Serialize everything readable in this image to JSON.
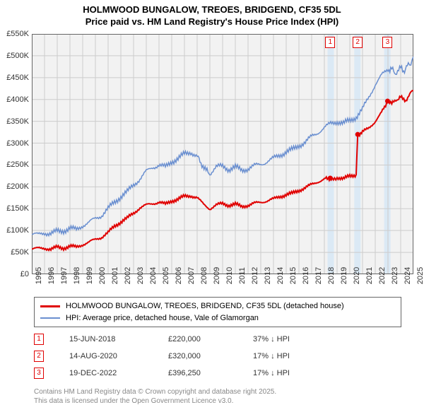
{
  "title_line1": "HOLMWOOD BUNGALOW, TREOES, BRIDGEND, CF35 5DL",
  "title_line2": "Price paid vs. HM Land Registry's House Price Index (HPI)",
  "chart": {
    "plot_background": "#f2f2f2",
    "band_color": "#dbe9f5",
    "grid_color": "#cccccc",
    "x_years": [
      1995,
      1996,
      1997,
      1998,
      1999,
      2000,
      2001,
      2002,
      2003,
      2004,
      2005,
      2006,
      2007,
      2008,
      2009,
      2010,
      2011,
      2012,
      2013,
      2014,
      2015,
      2016,
      2017,
      2018,
      2019,
      2020,
      2021,
      2022,
      2023,
      2024,
      2025
    ],
    "ylim": [
      0,
      550
    ],
    "ytick_step": 50,
    "ytick_labels": [
      "£0",
      "£50K",
      "£100K",
      "£150K",
      "£200K",
      "£250K",
      "£300K",
      "£350K",
      "£400K",
      "£450K",
      "£500K",
      "£550K"
    ],
    "bands": [
      {
        "from": 2018.25,
        "to": 2018.75
      },
      {
        "from": 2020.35,
        "to": 2020.85
      },
      {
        "from": 2022.7,
        "to": 2023.2
      }
    ],
    "series_red": {
      "color": "#e00000",
      "width": 2,
      "points": [
        [
          1995,
          58
        ],
        [
          1996,
          60
        ],
        [
          1996.5,
          57
        ],
        [
          1997,
          62
        ],
        [
          1997.5,
          60
        ],
        [
          1998,
          64
        ],
        [
          1998.5,
          62
        ],
        [
          1999,
          68
        ],
        [
          1999.5,
          73
        ],
        [
          2000,
          80
        ],
        [
          2000.5,
          85
        ],
        [
          2001,
          95
        ],
        [
          2001.5,
          110
        ],
        [
          2002,
          120
        ],
        [
          2002.5,
          128
        ],
        [
          2003,
          140
        ],
        [
          2003.5,
          152
        ],
        [
          2004,
          158
        ],
        [
          2004.5,
          162
        ],
        [
          2005,
          165
        ],
        [
          2005.5,
          160
        ],
        [
          2006,
          168
        ],
        [
          2006.5,
          172
        ],
        [
          2007,
          178
        ],
        [
          2007.5,
          180
        ],
        [
          2008,
          175
        ],
        [
          2008.5,
          160
        ],
        [
          2009,
          150
        ],
        [
          2009.5,
          158
        ],
        [
          2010,
          162
        ],
        [
          2010.5,
          158
        ],
        [
          2011,
          160
        ],
        [
          2011.5,
          155
        ],
        [
          2012,
          158
        ],
        [
          2012.5,
          162
        ],
        [
          2013,
          165
        ],
        [
          2013.5,
          168
        ],
        [
          2014,
          172
        ],
        [
          2014.5,
          178
        ],
        [
          2015,
          182
        ],
        [
          2015.5,
          185
        ],
        [
          2016,
          192
        ],
        [
          2016.5,
          198
        ],
        [
          2017,
          205
        ],
        [
          2017.5,
          212
        ],
        [
          2018,
          218
        ],
        [
          2018.46,
          220
        ],
        [
          2018.46,
          220
        ],
        [
          2018.8,
          218
        ],
        [
          2019,
          222
        ],
        [
          2019.5,
          218
        ],
        [
          2020,
          225
        ],
        [
          2020.5,
          228
        ],
        [
          2020.62,
          320
        ],
        [
          2020.62,
          320
        ],
        [
          2021,
          325
        ],
        [
          2021.5,
          335
        ],
        [
          2022,
          350
        ],
        [
          2022.5,
          370
        ],
        [
          2022.97,
          396.25
        ],
        [
          2022.97,
          396.25
        ],
        [
          2023.3,
          390
        ],
        [
          2023.7,
          400
        ],
        [
          2024,
          405
        ],
        [
          2024.4,
          398
        ],
        [
          2024.8,
          415
        ],
        [
          2025,
          420
        ]
      ],
      "sale_markers": [
        {
          "x": 2018.46,
          "y": 220
        },
        {
          "x": 2020.62,
          "y": 320
        },
        {
          "x": 2022.97,
          "y": 396.25
        }
      ]
    },
    "series_blue": {
      "color": "#6a8fd0",
      "width": 1.5,
      "points": [
        [
          1995,
          92
        ],
        [
          1995.5,
          90
        ],
        [
          1996,
          95
        ],
        [
          1996.5,
          93
        ],
        [
          1997,
          98
        ],
        [
          1997.5,
          100
        ],
        [
          1998,
          105
        ],
        [
          1998.5,
          102
        ],
        [
          1999,
          112
        ],
        [
          1999.5,
          118
        ],
        [
          2000,
          128
        ],
        [
          2000.5,
          135
        ],
        [
          2001,
          150
        ],
        [
          2001.5,
          165
        ],
        [
          2002,
          178
        ],
        [
          2002.5,
          188
        ],
        [
          2003,
          205
        ],
        [
          2003.5,
          218
        ],
        [
          2004,
          235
        ],
        [
          2004.5,
          245
        ],
        [
          2005,
          250
        ],
        [
          2005.5,
          245
        ],
        [
          2006,
          258
        ],
        [
          2006.5,
          265
        ],
        [
          2007,
          275
        ],
        [
          2007.5,
          280
        ],
        [
          2008,
          270
        ],
        [
          2008.3,
          255
        ],
        [
          2008.7,
          238
        ],
        [
          2009,
          230
        ],
        [
          2009.5,
          245
        ],
        [
          2010,
          248
        ],
        [
          2010.5,
          240
        ],
        [
          2011,
          245
        ],
        [
          2011.5,
          238
        ],
        [
          2012,
          242
        ],
        [
          2012.5,
          248
        ],
        [
          2013,
          252
        ],
        [
          2013.5,
          258
        ],
        [
          2014,
          265
        ],
        [
          2014.5,
          273
        ],
        [
          2015,
          280
        ],
        [
          2015.5,
          285
        ],
        [
          2016,
          295
        ],
        [
          2016.5,
          302
        ],
        [
          2017,
          315
        ],
        [
          2017.5,
          325
        ],
        [
          2018,
          335
        ],
        [
          2018.5,
          345
        ],
        [
          2019,
          350
        ],
        [
          2019.5,
          345
        ],
        [
          2020,
          352
        ],
        [
          2020.5,
          360
        ],
        [
          2021,
          378
        ],
        [
          2021.5,
          405
        ],
        [
          2022,
          435
        ],
        [
          2022.5,
          455
        ],
        [
          2023,
          468
        ],
        [
          2023.3,
          470
        ],
        [
          2023.6,
          460
        ],
        [
          2024,
          472
        ],
        [
          2024.3,
          465
        ],
        [
          2024.6,
          480
        ],
        [
          2024.8,
          475
        ],
        [
          2025,
          498
        ]
      ]
    }
  },
  "legend": {
    "red_label": "HOLMWOOD BUNGALOW, TREOES, BRIDGEND, CF35 5DL (detached house)",
    "blue_label": "HPI: Average price, detached house, Vale of Glamorgan"
  },
  "sales": [
    {
      "n": "1",
      "date": "15-JUN-2018",
      "price": "£220,000",
      "delta": "37% ↓ HPI"
    },
    {
      "n": "2",
      "date": "14-AUG-2020",
      "price": "£320,000",
      "delta": "17% ↓ HPI"
    },
    {
      "n": "3",
      "date": "19-DEC-2022",
      "price": "£396,250",
      "delta": "17% ↓ HPI"
    }
  ],
  "footer_line1": "Contains HM Land Registry data © Crown copyright and database right 2025.",
  "footer_line2": "This data is licensed under the Open Government Licence v3.0."
}
